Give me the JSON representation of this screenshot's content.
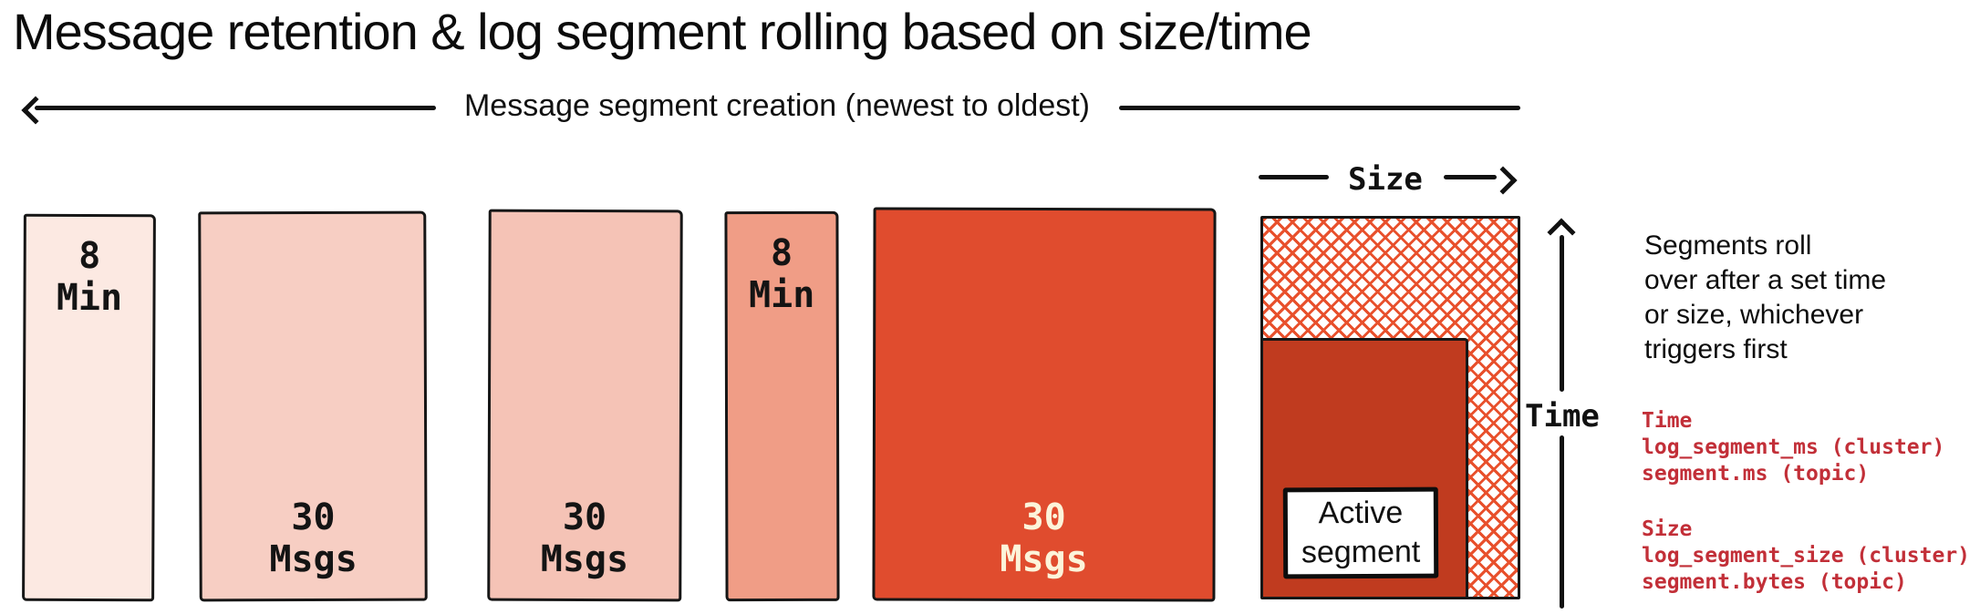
{
  "title": "Message retention & log segment rolling based on size/time",
  "header_arrow": {
    "label": "Message segment creation (newest to oldest)"
  },
  "segments": [
    {
      "label_lines": [
        "8",
        "Min"
      ],
      "fill": "#fce9e2",
      "text_color": "#141414",
      "label_position": "top"
    },
    {
      "label_lines": [
        "30",
        "Msgs"
      ],
      "fill": "#f7cec3",
      "text_color": "#141414",
      "label_position": "bottom"
    },
    {
      "label_lines": [
        "30",
        "Msgs"
      ],
      "fill": "#f5c3b6",
      "text_color": "#141414",
      "label_position": "bottom"
    },
    {
      "label_lines": [
        "8",
        "Min"
      ],
      "fill": "#f09d86",
      "text_color": "#141414",
      "label_position": "top"
    },
    {
      "label_lines": [
        "30",
        "Msgs"
      ],
      "fill": "#e04c2e",
      "text_color": "#fcf4da",
      "label_position": "bottom"
    }
  ],
  "active_segment": {
    "label_lines": [
      "Active",
      "segment"
    ],
    "fill": "#c03b1f",
    "hatch_color": "#e8502c"
  },
  "axes": {
    "size_label": "Size",
    "time_label": "Time"
  },
  "note": {
    "lines": [
      "Segments roll",
      "over after a set time",
      "or size, whichever",
      "triggers first"
    ]
  },
  "config": {
    "color": "#c22f38",
    "time_heading": "Time",
    "time_lines": [
      "log_segment_ms (cluster)",
      "segment.ms (topic)"
    ],
    "size_heading": "Size",
    "size_lines": [
      "log_segment_size (cluster)",
      "segment.bytes (topic)"
    ]
  }
}
